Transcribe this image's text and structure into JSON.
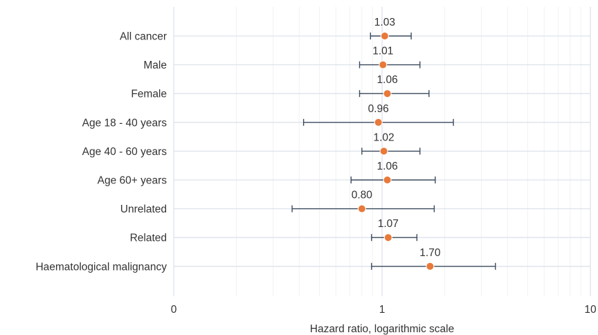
{
  "chart_data": {
    "type": "forest",
    "xlabel": "Hazard ratio, logarithmic scale",
    "x_scale": "log",
    "xlim": [
      0.1,
      10
    ],
    "x_ticks": [
      {
        "value": 0.1,
        "label": "0"
      },
      {
        "value": 1,
        "label": "1"
      },
      {
        "value": 10,
        "label": "10"
      }
    ],
    "grid": true,
    "point_color": "#E8793A",
    "errorbar_color": "#3B4A5C",
    "series": [
      {
        "category": "All cancer",
        "hr": 1.03,
        "lower": 0.88,
        "upper": 1.38,
        "label": "1.03"
      },
      {
        "category": "Male",
        "hr": 1.01,
        "lower": 0.78,
        "upper": 1.52,
        "label": "1.01"
      },
      {
        "category": "Female",
        "hr": 1.06,
        "lower": 0.78,
        "upper": 1.68,
        "label": "1.06"
      },
      {
        "category": "Age 18 - 40 years",
        "hr": 0.96,
        "lower": 0.42,
        "upper": 2.2,
        "label": "0.96"
      },
      {
        "category": "Age 40 - 60 years",
        "hr": 1.02,
        "lower": 0.8,
        "upper": 1.52,
        "label": "1.02"
      },
      {
        "category": "Age 60+ years",
        "hr": 1.06,
        "lower": 0.71,
        "upper": 1.8,
        "label": "1.06"
      },
      {
        "category": "Unrelated",
        "hr": 0.8,
        "lower": 0.37,
        "upper": 1.78,
        "label": "0.80"
      },
      {
        "category": "Related",
        "hr": 1.07,
        "lower": 0.89,
        "upper": 1.47,
        "label": "1.07"
      },
      {
        "category": "Haematological malignancy",
        "hr": 1.7,
        "lower": 0.89,
        "upper": 3.5,
        "label": "1.70"
      }
    ]
  }
}
